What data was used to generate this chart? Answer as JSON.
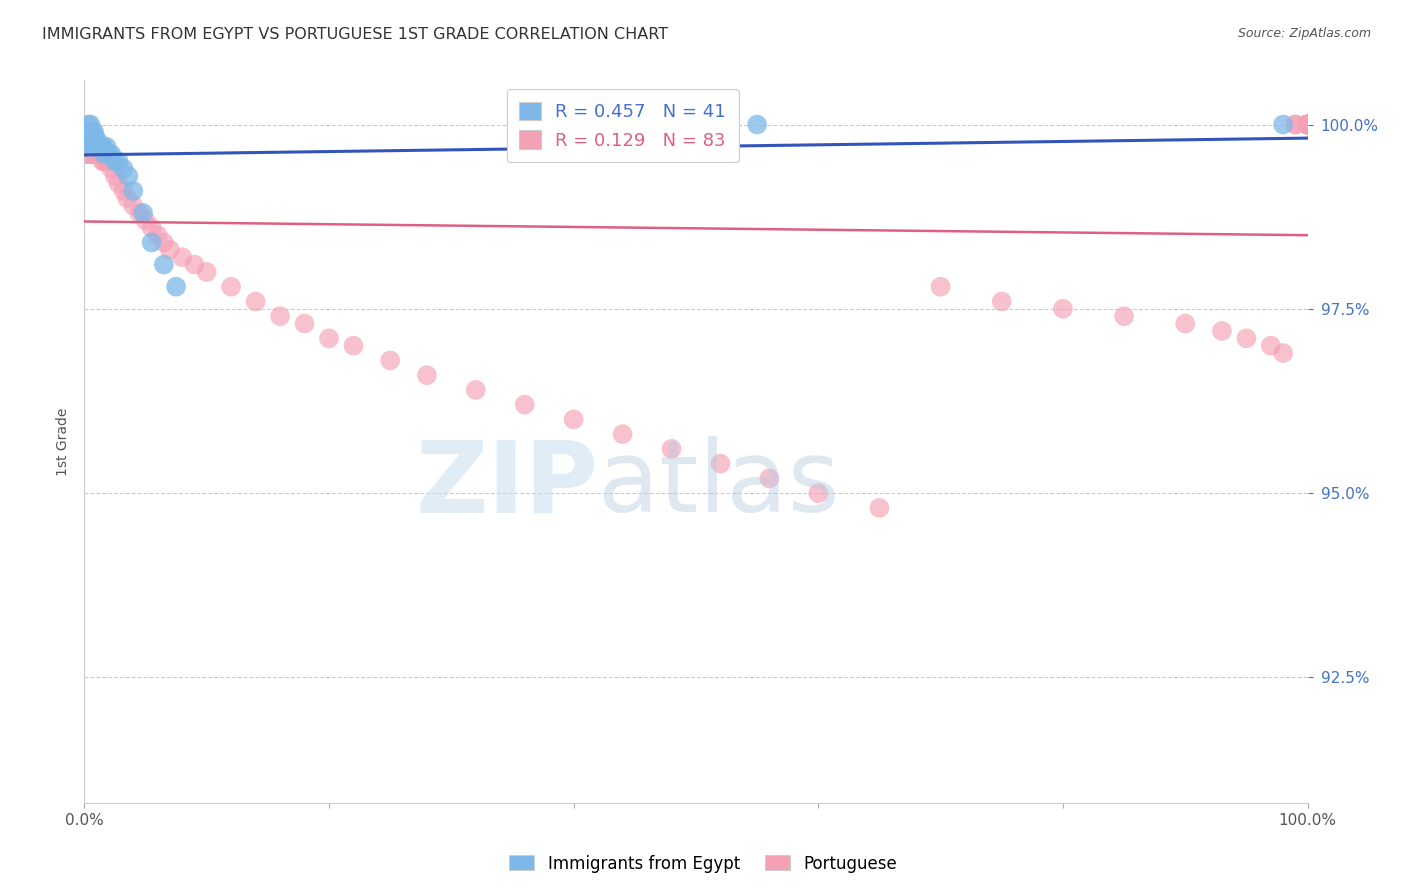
{
  "title": "IMMIGRANTS FROM EGYPT VS PORTUGUESE 1ST GRADE CORRELATION CHART",
  "source": "Source: ZipAtlas.com",
  "ylabel": "1st Grade",
  "ytick_values": [
    1.0,
    0.975,
    0.95,
    0.925
  ],
  "xlim": [
    0.0,
    1.0
  ],
  "ylim": [
    0.908,
    1.006
  ],
  "egypt_color": "#7db8e8",
  "portuguese_color": "#f4a0b5",
  "egypt_line_color": "#3355bb",
  "portuguese_line_color": "#dd6080",
  "egypt_R": 0.457,
  "egypt_N": 41,
  "portuguese_R": 0.129,
  "portuguese_N": 83,
  "legend_label_egypt": "R = 0.457   N = 41",
  "legend_label_port": "R = 0.129   N = 83",
  "egypt_x": [
    0.001,
    0.002,
    0.002,
    0.003,
    0.003,
    0.003,
    0.004,
    0.004,
    0.005,
    0.005,
    0.005,
    0.006,
    0.006,
    0.006,
    0.007,
    0.007,
    0.008,
    0.008,
    0.009,
    0.009,
    0.01,
    0.011,
    0.012,
    0.013,
    0.014,
    0.015,
    0.016,
    0.018,
    0.02,
    0.022,
    0.025,
    0.028,
    0.032,
    0.036,
    0.04,
    0.048,
    0.055,
    0.065,
    0.075,
    0.55,
    0.98
  ],
  "egypt_y": [
    0.999,
    0.999,
    0.998,
    1.0,
    0.999,
    0.998,
    0.999,
    0.998,
    1.0,
    0.999,
    0.998,
    0.999,
    0.998,
    0.997,
    0.999,
    0.998,
    0.999,
    0.997,
    0.998,
    0.997,
    0.998,
    0.997,
    0.997,
    0.997,
    0.997,
    0.997,
    0.996,
    0.997,
    0.996,
    0.996,
    0.995,
    0.995,
    0.994,
    0.993,
    0.991,
    0.988,
    0.984,
    0.981,
    0.978,
    1.0,
    1.0
  ],
  "port_x": [
    0.001,
    0.002,
    0.002,
    0.003,
    0.003,
    0.004,
    0.004,
    0.005,
    0.005,
    0.006,
    0.006,
    0.007,
    0.007,
    0.008,
    0.008,
    0.009,
    0.009,
    0.01,
    0.011,
    0.012,
    0.013,
    0.015,
    0.016,
    0.018,
    0.02,
    0.022,
    0.025,
    0.028,
    0.032,
    0.035,
    0.04,
    0.045,
    0.05,
    0.055,
    0.06,
    0.065,
    0.07,
    0.08,
    0.09,
    0.1,
    0.12,
    0.14,
    0.16,
    0.18,
    0.2,
    0.22,
    0.25,
    0.28,
    0.32,
    0.36,
    0.4,
    0.44,
    0.48,
    0.52,
    0.56,
    0.6,
    0.65,
    0.7,
    0.75,
    0.8,
    0.85,
    0.9,
    0.93,
    0.95,
    0.97,
    0.98,
    0.99,
    0.99,
    1.0,
    1.0,
    1.0,
    1.0,
    1.0,
    1.0,
    1.0,
    1.0,
    1.0,
    1.0,
    1.0,
    1.0,
    1.0,
    1.0,
    1.0
  ],
  "port_y": [
    0.997,
    0.997,
    0.996,
    0.997,
    0.996,
    0.997,
    0.996,
    0.997,
    0.996,
    0.997,
    0.996,
    0.997,
    0.996,
    0.997,
    0.996,
    0.997,
    0.996,
    0.997,
    0.996,
    0.996,
    0.996,
    0.995,
    0.995,
    0.995,
    0.9955,
    0.994,
    0.993,
    0.992,
    0.991,
    0.99,
    0.989,
    0.988,
    0.987,
    0.986,
    0.985,
    0.984,
    0.983,
    0.982,
    0.981,
    0.98,
    0.978,
    0.976,
    0.974,
    0.973,
    0.971,
    0.97,
    0.968,
    0.966,
    0.964,
    0.962,
    0.96,
    0.958,
    0.956,
    0.954,
    0.952,
    0.95,
    0.948,
    0.978,
    0.976,
    0.975,
    0.974,
    0.973,
    0.972,
    0.971,
    0.97,
    0.969,
    1.0,
    1.0,
    1.0,
    1.0,
    1.0,
    1.0,
    1.0,
    1.0,
    1.0,
    1.0,
    1.0,
    1.0,
    1.0,
    1.0,
    1.0,
    1.0,
    1.0
  ]
}
